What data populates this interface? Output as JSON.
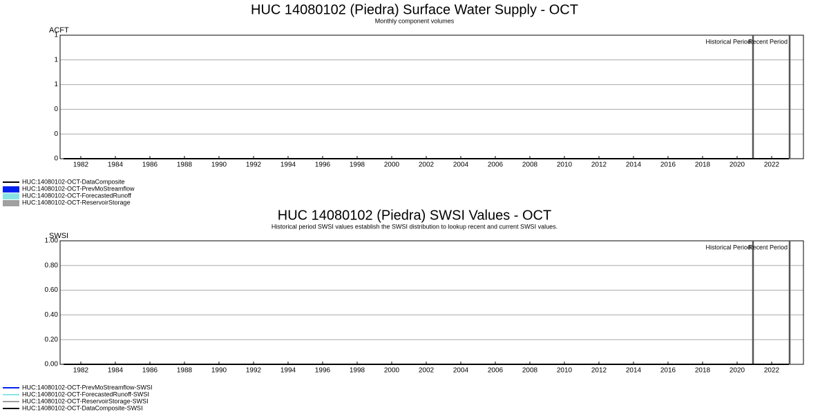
{
  "chart_data": [
    {
      "type": "area",
      "title": "HUC 14080102 (Piedra) Surface Water Supply - OCT",
      "subtitle": "Monthly component volumes",
      "y_label": "ACFT",
      "x": [
        1981,
        1983,
        1985,
        1987,
        1989,
        1991,
        1993,
        1995,
        1997,
        1999,
        2001,
        2003,
        2005,
        2007,
        2009,
        2011,
        2013,
        2015,
        2017,
        2019,
        2021,
        2023
      ],
      "series": [
        {
          "name": "HUC:14080102-OCT-DataComposite",
          "color": "#000000",
          "kind": "line",
          "values": [
            0,
            0,
            0,
            0,
            0,
            0,
            0,
            0,
            0,
            0,
            0,
            0,
            0,
            0,
            0,
            0,
            0,
            0,
            0,
            0,
            0,
            0
          ]
        },
        {
          "name": "HUC:14080102-OCT-PrevMoStreamflow",
          "color": "#0022ee",
          "kind": "area",
          "values": [
            null,
            null,
            null,
            null,
            null,
            null,
            null,
            null,
            null,
            null,
            null,
            null,
            null,
            null,
            null,
            null,
            null,
            null,
            null,
            null,
            null,
            null
          ]
        },
        {
          "name": "HUC:14080102-OCT-ForecastedRunoff",
          "color": "#88e4e4",
          "kind": "area",
          "values": [
            null,
            null,
            null,
            null,
            null,
            null,
            null,
            null,
            null,
            null,
            null,
            null,
            null,
            null,
            null,
            null,
            null,
            null,
            null,
            null,
            null,
            null
          ]
        },
        {
          "name": "HUC:14080102-OCT-ReservoirStorage",
          "color": "#a0a0a0",
          "kind": "area",
          "values": [
            null,
            null,
            null,
            null,
            null,
            null,
            null,
            null,
            null,
            null,
            null,
            null,
            null,
            null,
            null,
            null,
            null,
            null,
            null,
            null,
            null,
            null
          ]
        }
      ],
      "xlim": [
        1980.8,
        2023.84
      ],
      "xticks": [
        1982,
        1984,
        1986,
        1988,
        1990,
        1992,
        1994,
        1996,
        1998,
        2000,
        2002,
        2004,
        2006,
        2008,
        2010,
        2012,
        2014,
        2016,
        2018,
        2020,
        2022
      ],
      "ylim": [
        0,
        1
      ],
      "yticks": [
        0,
        {
          "value": 0.2,
          "label": "0"
        },
        {
          "value": 0.4,
          "label": "0"
        },
        {
          "value": 0.6,
          "label": "1"
        },
        {
          "value": 0.8,
          "label": "1"
        },
        1
      ],
      "grid": true,
      "period_lines": [
        {
          "label": "Historical Period",
          "x": 2020.92
        },
        {
          "label": "Recent Period",
          "x": 2023.04
        }
      ]
    },
    {
      "type": "line",
      "title": "HUC 14080102 (Piedra) SWSI Values - OCT",
      "subtitle": "Historical period SWSI values establish the SWSI distribution to lookup recent and current SWSI values.",
      "y_label": "SWSI",
      "x": [
        1981,
        1983,
        1985,
        1987,
        1989,
        1991,
        1993,
        1995,
        1997,
        1999,
        2001,
        2003,
        2005,
        2007,
        2009,
        2011,
        2013,
        2015,
        2017,
        2019,
        2021,
        2023
      ],
      "series": [
        {
          "name": "HUC:14080102-OCT-PrevMoStreamflow-SWSI",
          "color": "#0022ee",
          "kind": "line",
          "values": [
            null,
            null,
            null,
            null,
            null,
            null,
            null,
            null,
            null,
            null,
            null,
            null,
            null,
            null,
            null,
            null,
            null,
            null,
            null,
            null,
            null,
            null
          ]
        },
        {
          "name": "HUC:14080102-OCT-ForecastedRunoff-SWSI",
          "color": "#88e4e4",
          "kind": "line",
          "values": [
            null,
            null,
            null,
            null,
            null,
            null,
            null,
            null,
            null,
            null,
            null,
            null,
            null,
            null,
            null,
            null,
            null,
            null,
            null,
            null,
            null,
            null
          ]
        },
        {
          "name": "HUC:14080102-OCT-ReservoirStorage-SWSI",
          "color": "#a0a0a0",
          "kind": "line",
          "values": [
            null,
            null,
            null,
            null,
            null,
            null,
            null,
            null,
            null,
            null,
            null,
            null,
            null,
            null,
            null,
            null,
            null,
            null,
            null,
            null,
            null,
            null
          ]
        },
        {
          "name": "HUC:14080102-OCT-DataComposite-SWSI",
          "color": "#000000",
          "kind": "line",
          "values": [
            0,
            0,
            0,
            0,
            0,
            0,
            0,
            0,
            0,
            0,
            0,
            0,
            0,
            0,
            0,
            0,
            0,
            0,
            0,
            0,
            0,
            0
          ]
        }
      ],
      "xlim": [
        1980.8,
        2023.84
      ],
      "xticks": [
        1982,
        1984,
        1986,
        1988,
        1990,
        1992,
        1994,
        1996,
        1998,
        2000,
        2002,
        2004,
        2006,
        2008,
        2010,
        2012,
        2014,
        2016,
        2018,
        2020,
        2022
      ],
      "ylim": [
        0,
        1
      ],
      "yticks": [
        {
          "value": 0,
          "label": "0.00"
        },
        {
          "value": 0.2,
          "label": "0.20"
        },
        {
          "value": 0.4,
          "label": "0.40"
        },
        {
          "value": 0.6,
          "label": "0.60"
        },
        {
          "value": 0.8,
          "label": "0.80"
        },
        {
          "value": 1,
          "label": "1.00"
        }
      ],
      "grid": true,
      "period_lines": [
        {
          "label": "Historical Period",
          "x": 2020.92
        },
        {
          "label": "Recent Period",
          "x": 2023.04
        }
      ]
    }
  ]
}
